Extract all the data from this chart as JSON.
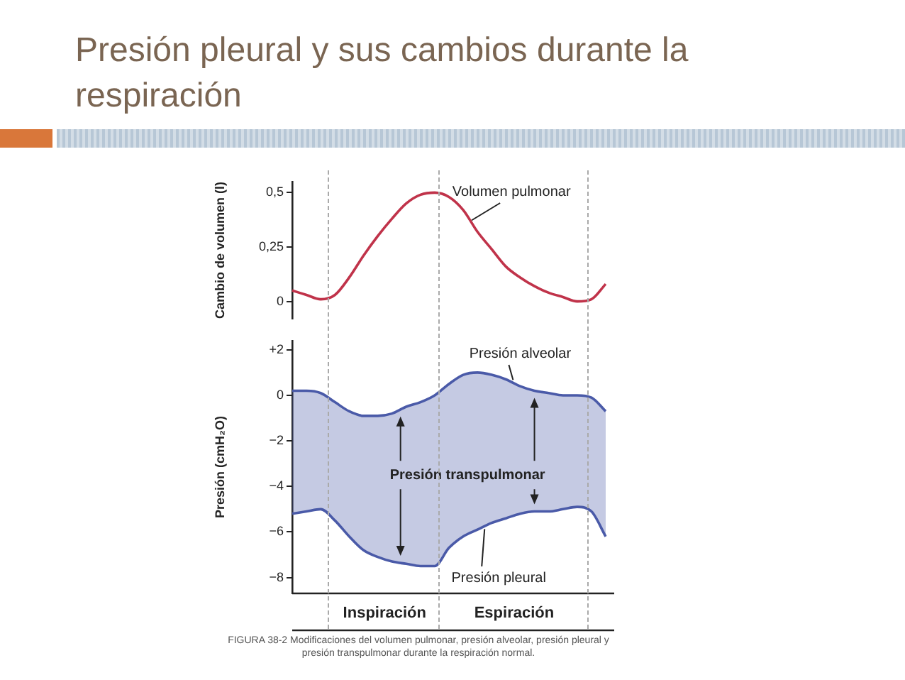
{
  "chart_data": [
    {
      "type": "line",
      "title": "Presión pleural y sus cambios durante la respiración",
      "ylabel": "Cambio de volumen (l)",
      "categories": [
        null,
        null,
        null,
        null,
        null,
        null,
        null,
        null,
        null,
        null,
        null,
        null,
        null,
        null,
        null,
        null,
        null,
        null,
        null,
        null,
        null,
        null,
        null
      ],
      "series": [
        {
          "name": "Volumen pulmonar",
          "color": "#c0334a",
          "values": [
            0.05,
            0.03,
            0.01,
            0.03,
            0.11,
            0.21,
            0.3,
            0.38,
            0.45,
            0.49,
            0.5,
            0.48,
            0.42,
            0.32,
            0.24,
            0.16,
            0.11,
            0.07,
            0.04,
            0.02,
            0.0,
            0.01,
            0.08
          ]
        }
      ],
      "ylim": [
        -0.08,
        0.55
      ],
      "yticks": [
        0,
        {
          "value": 0.25,
          "label": "0,25"
        },
        {
          "value": 0.5,
          "label": "0,5"
        }
      ],
      "tick_labels": "y",
      "grid": false,
      "marker": "none"
    },
    {
      "type": "line",
      "ylabel": "Presión (cmH₂O)",
      "categories": [
        null,
        null,
        null,
        null,
        null,
        null,
        null,
        null,
        null,
        null,
        null,
        null,
        null,
        null,
        null,
        null,
        null,
        null,
        null,
        null,
        null,
        null,
        null
      ],
      "series": [
        {
          "name": "Presión alveolar",
          "color": "#4a5aa8",
          "values": [
            0.2,
            0.2,
            0.1,
            -0.3,
            -0.7,
            -0.9,
            -0.9,
            -0.8,
            -0.5,
            -0.3,
            0.0,
            0.5,
            0.9,
            1.0,
            0.9,
            0.7,
            0.4,
            0.2,
            0.1,
            0.0,
            0.0,
            -0.1,
            -0.7
          ],
          "lower": [
            -5.2,
            -5.1,
            -5.0,
            -5.5,
            -6.2,
            -6.8,
            -7.1,
            -7.3,
            -7.4,
            -7.5,
            -7.5,
            -6.7,
            -6.2,
            -5.9,
            -5.6,
            -5.4,
            -5.2,
            -5.1,
            -5.1,
            -5.0,
            -4.9,
            -5.1,
            -6.2
          ],
          "upper": [
            0.2,
            0.2,
            0.1,
            -0.3,
            -0.7,
            -0.9,
            -0.9,
            -0.8,
            -0.5,
            -0.3,
            0.0,
            0.5,
            0.9,
            1.0,
            0.9,
            0.7,
            0.4,
            0.2,
            0.1,
            0.0,
            0.0,
            -0.1,
            -0.7
          ]
        },
        {
          "name": "Presión pleural",
          "color": "#4a5aa8",
          "values": [
            -5.2,
            -5.1,
            -5.0,
            -5.5,
            -6.2,
            -6.8,
            -7.1,
            -7.3,
            -7.4,
            -7.5,
            -7.5,
            -6.7,
            -6.2,
            -5.9,
            -5.6,
            -5.4,
            -5.2,
            -5.1,
            -5.1,
            -5.0,
            -4.9,
            -5.1,
            -6.2
          ]
        }
      ],
      "ylim": [
        -8.7,
        2.4
      ],
      "yticks": [
        {
          "value": -8,
          "label": "−8"
        },
        {
          "value": -6,
          "label": "−6"
        },
        {
          "value": -4,
          "label": "−4"
        },
        {
          "value": -2,
          "label": "−2"
        },
        0,
        {
          "value": 2,
          "label": "+2"
        }
      ],
      "tick_labels": "y",
      "grid": false,
      "marker": "none",
      "annotations": [
        "Presión transpulmonar",
        "Inspiración",
        "Espiración",
        "FIGURA 38-2 Modificaciones del volumen pulmonar, presión alveolar, presión pleural y presión transpulmonar durante la respiración normal."
      ]
    }
  ]
}
